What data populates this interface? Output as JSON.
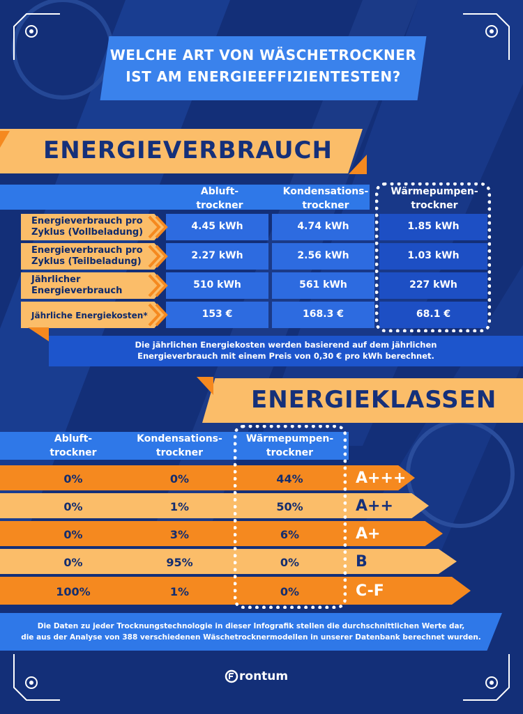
{
  "header": {
    "title_line1": "WELCHE ART VON WÄSCHETROCKNER",
    "title_line2": "IST AM ENERGIEEFFIZIENTESTEN?"
  },
  "colors": {
    "background": "#132f78",
    "accent_orange": "#f5891f",
    "accent_light_orange": "#fbbd69",
    "accent_blue": "#2d6be0",
    "text_dark": "#0f2a6b"
  },
  "section_energy": {
    "title": "ENERGIEVERBRAUCH",
    "column_headers": [
      [
        "Abluft-",
        "trockner"
      ],
      [
        "Kondensations-",
        "trockner"
      ],
      [
        "Wärmepumpen-",
        "trockner"
      ]
    ],
    "rows": [
      {
        "label": [
          "Energieverbrauch pro",
          "Zyklus (Vollbeladung)"
        ],
        "values": [
          "4.45 kWh",
          "4.74 kWh",
          "1.85 kWh"
        ]
      },
      {
        "label": [
          "Energieverbrauch pro",
          "Zyklus (Teilbeladung)"
        ],
        "values": [
          "2.27 kWh",
          "2.56 kWh",
          "1.03 kWh"
        ]
      },
      {
        "label": [
          "Jährlicher",
          "Energieverbrauch"
        ],
        "values": [
          "510 kWh",
          "561 kWh",
          "227 kWh"
        ]
      },
      {
        "label": [
          "Jährliche Energiekosten*",
          ""
        ],
        "values": [
          "153 €",
          "168.3 €",
          "68.1 €"
        ]
      }
    ],
    "footnote_line1": "Die jährlichen Energiekosten werden basierend auf dem jährlichen",
    "footnote_line2": "Energieverbrauch mit einem Preis von 0,30 € pro kWh berechnet."
  },
  "section_classes": {
    "title": "ENERGIEKLASSEN",
    "column_headers": [
      [
        "Abluft-",
        "trockner"
      ],
      [
        "Kondensations-",
        "trockner"
      ],
      [
        "Wärmepumpen-",
        "trockner"
      ]
    ],
    "rows": [
      {
        "values": [
          "0%",
          "0%",
          "44%"
        ],
        "class_label": "A+++"
      },
      {
        "values": [
          "0%",
          "1%",
          "50%"
        ],
        "class_label": "A++"
      },
      {
        "values": [
          "0%",
          "3%",
          "6%"
        ],
        "class_label": "A+"
      },
      {
        "values": [
          "0%",
          "95%",
          "0%"
        ],
        "class_label": "B"
      },
      {
        "values": [
          "100%",
          "1%",
          "0%"
        ],
        "class_label": "C-F"
      }
    ]
  },
  "footer": {
    "note_line1": "Die Daten zu jeder Trocknungstechnologie in dieser Infografik stellen die durchschnittlichen Werte dar,",
    "note_line2": "die aus der Analyse von 388 verschiedenen Wäschetrocknermodellen in unserer Datenbank berechnet wurden.",
    "brand": "rontum"
  },
  "chart_data": [
    {
      "type": "table",
      "title": "ENERGIEVERBRAUCH",
      "columns": [
        "Abluft-trockner",
        "Kondensations-trockner",
        "Wärmepumpen-trockner"
      ],
      "rows": [
        {
          "label": "Energieverbrauch pro Zyklus (Vollbeladung)",
          "values": [
            "4.45 kWh",
            "4.74 kWh",
            "1.85 kWh"
          ]
        },
        {
          "label": "Energieverbrauch pro Zyklus (Teilbeladung)",
          "values": [
            "2.27 kWh",
            "2.56 kWh",
            "1.03 kWh"
          ]
        },
        {
          "label": "Jährlicher Energieverbrauch",
          "values": [
            "510 kWh",
            "561 kWh",
            "227 kWh"
          ]
        },
        {
          "label": "Jährliche Energiekosten*",
          "values": [
            "153 €",
            "168.3 €",
            "68.1 €"
          ]
        }
      ]
    },
    {
      "type": "table",
      "title": "ENERGIEKLASSEN",
      "columns": [
        "Abluft-trockner",
        "Kondensations-trockner",
        "Wärmepumpen-trockner"
      ],
      "rows": [
        {
          "label": "A+++",
          "values": [
            "0%",
            "0%",
            "44%"
          ]
        },
        {
          "label": "A++",
          "values": [
            "0%",
            "1%",
            "50%"
          ]
        },
        {
          "label": "A+",
          "values": [
            "0%",
            "3%",
            "6%"
          ]
        },
        {
          "label": "B",
          "values": [
            "0%",
            "95%",
            "0%"
          ]
        },
        {
          "label": "C-F",
          "values": [
            "100%",
            "1%",
            "0%"
          ]
        }
      ]
    }
  ]
}
